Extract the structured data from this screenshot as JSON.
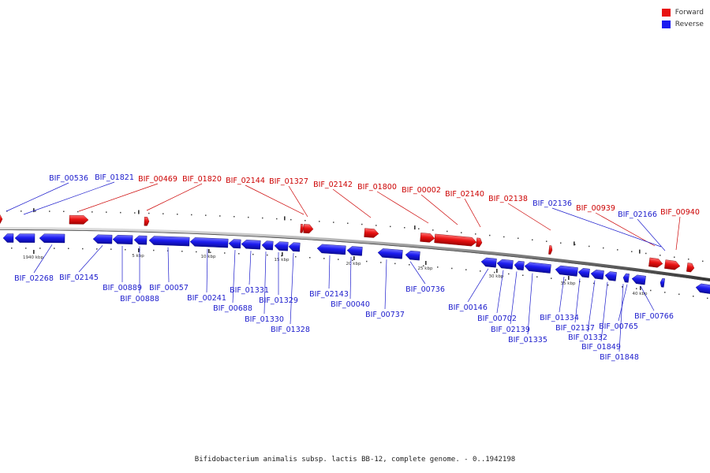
{
  "legend": {
    "forward_label": "Forward",
    "reverse_label": "Reverse",
    "forward_color": "#e81212",
    "reverse_color": "#1c1cf0"
  },
  "colors": {
    "forward_label_text": "#cc0000",
    "reverse_label_text": "#1a1acc",
    "backbone": "#808080"
  },
  "caption": "Bifidobacterium animalis subsp. lactis BB-12, complete genome. - 0..1942198",
  "scale_labels": [
    "1940 kbp",
    "5 kbp",
    "10 kbp",
    "15 kbp",
    "20 kbp",
    "25 kbp",
    "30 kbp",
    "35 kbp",
    "40 kbp"
  ],
  "forward_genes": [
    "BIF_00469",
    "BIF_01820",
    "BIF_02144",
    "BIF_01327",
    "BIF_02142",
    "BIF_01800",
    "BIF_00002",
    "BIF_02140",
    "BIF_02138",
    "BIF_00939",
    "BIF_00940"
  ],
  "reverse_genes_top": [
    "BIF_00536",
    "BIF_01821",
    "BIF_02136",
    "BIF_02166"
  ],
  "reverse_genes_bottom": [
    "BIF_02268",
    "BIF_02145",
    "BIF_00889",
    "BIF_00888",
    "BIF_00057",
    "BIF_00241",
    "BIF_00688",
    "BIF_01331",
    "BIF_01330",
    "BIF_01329",
    "BIF_01328",
    "BIF_02143",
    "BIF_00040",
    "BIF_00737",
    "BIF_00736",
    "BIF_00146",
    "BIF_00702",
    "BIF_02139",
    "BIF_01335",
    "BIF_01334",
    "BIF_02137",
    "BIF_01332",
    "BIF_01849",
    "BIF_01848",
    "BIF_00765",
    "BIF_00766"
  ]
}
